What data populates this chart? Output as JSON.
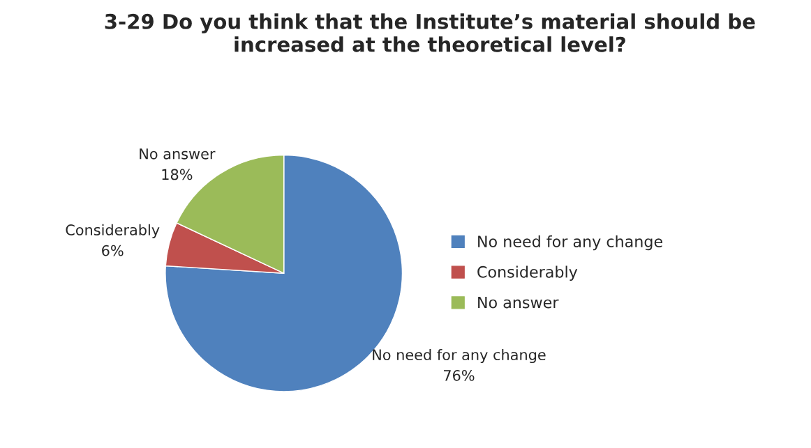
{
  "chart_data": {
    "type": "pie",
    "title": "3-29 Do you think that the Institute’s material should be increased at the theoretical level?",
    "categories": [
      "No need for any change",
      "Considerably",
      "No answer"
    ],
    "values": [
      76,
      6,
      18
    ],
    "colors": [
      "#4f81bd",
      "#c0504d",
      "#9bbb59"
    ],
    "value_labels": [
      "76%",
      "6%",
      "18%"
    ],
    "legend": "right"
  }
}
